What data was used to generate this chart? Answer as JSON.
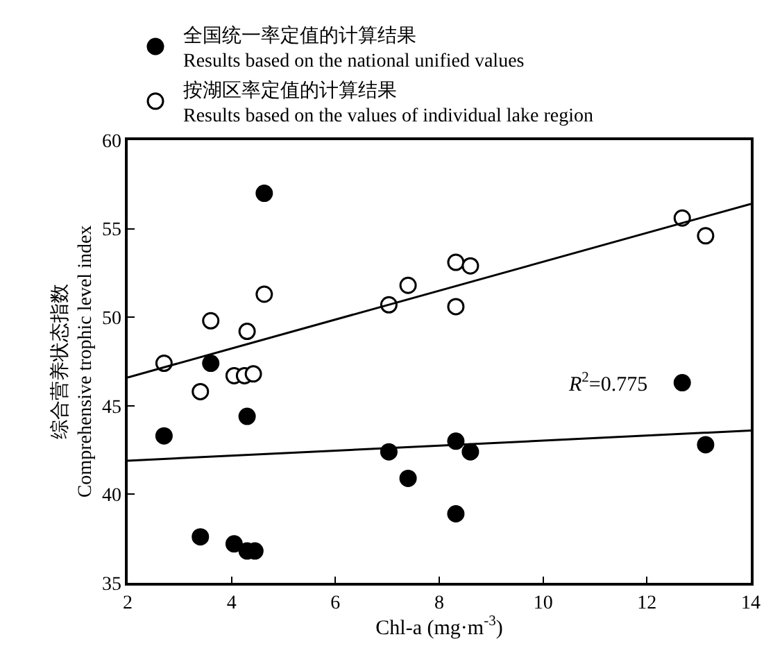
{
  "chart_data": {
    "type": "scatter",
    "xlabel": "Chl-a (mg·m$^{-3}$)",
    "ylabel": "综合营养状态指数\nComprehensive trophic level index",
    "xlim": [
      2,
      14
    ],
    "xticks": [
      2,
      4,
      6,
      8,
      10,
      12,
      14
    ],
    "ylim": [
      35,
      60
    ],
    "yticks": [
      35,
      40,
      45,
      50,
      55,
      60
    ],
    "legend": "top left",
    "marker": "circle",
    "annotations": [
      "R$^{2}$=0.775"
    ],
    "series": [
      {
        "name": "全国统一率定值的计算结果\nResults based on the national unified values",
        "color": "#000000",
        "x": [
          2.7,
          3.6,
          3.4,
          4.05,
          4.3,
          4.45,
          4.3,
          4.63,
          7.03,
          7.4,
          8.32,
          8.6,
          8.32,
          12.68,
          13.13
        ],
        "values": [
          43.3,
          47.4,
          37.6,
          37.2,
          36.8,
          36.8,
          44.4,
          57.0,
          42.4,
          40.9,
          43.0,
          42.4,
          38.9,
          46.3,
          42.8
        ]
      },
      {
        "name": "按湖区率定值的计算结果\nResults based on the values of individual lake region",
        "color": "#ffffff",
        "x": [
          2.7,
          3.4,
          3.6,
          4.05,
          4.3,
          4.25,
          4.42,
          4.63,
          7.03,
          7.4,
          8.32,
          8.6,
          8.32,
          12.68,
          13.13
        ],
        "values": [
          47.4,
          45.8,
          49.8,
          46.7,
          49.2,
          46.7,
          46.8,
          51.3,
          50.7,
          51.8,
          53.1,
          52.9,
          50.6,
          55.6,
          54.6
        ]
      },
      {
        "type": "line",
        "marker": "none",
        "color": "#000000",
        "x": [
          2,
          14
        ],
        "values": [
          41.9,
          43.6
        ]
      },
      {
        "type": "line",
        "marker": "none",
        "color": "#000000",
        "x": [
          2,
          14
        ],
        "values": [
          46.6,
          56.4
        ]
      }
    ]
  }
}
